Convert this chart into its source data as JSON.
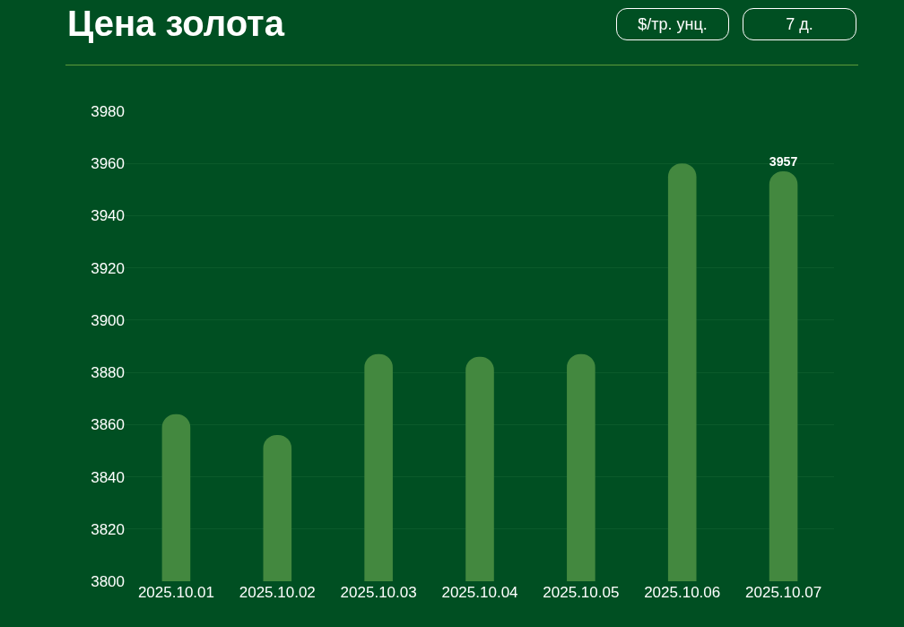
{
  "chart_data": {
    "type": "bar",
    "title": "Цена золота",
    "annotations": [
      "$/тр. унц.",
      "7 д."
    ],
    "categories": [
      "2025.10.01",
      "2025.10.02",
      "2025.10.03",
      "2025.10.04",
      "2025.10.05",
      "2025.10.06",
      "2025.10.07"
    ],
    "values": [
      3864,
      3856,
      3887,
      3886,
      3887,
      3960,
      3957
    ],
    "value_labels": [
      null,
      null,
      null,
      null,
      null,
      null,
      "3957"
    ],
    "color": "#43883f",
    "ylim": [
      3800,
      3980
    ],
    "yticks": [
      3800,
      3820,
      3840,
      3860,
      3880,
      3900,
      3920,
      3940,
      3960,
      3980
    ],
    "grid": "y"
  }
}
